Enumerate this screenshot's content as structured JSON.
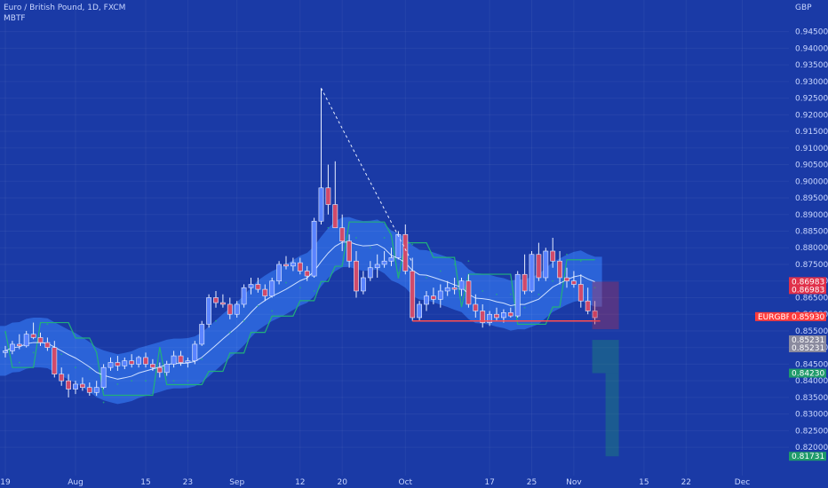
{
  "header": {
    "symbol_line": "Euro / British Pound, 1D, FXCM",
    "indicator": "MBTF"
  },
  "colors": {
    "background": "#1a3aa6",
    "band": "#2f6be0",
    "up": "#5b84ff",
    "down": "#d04a6a",
    "sma": "#cfe0ff",
    "trail": "#22b07a",
    "price_line": "#ff4d4d"
  },
  "chart_data": {
    "type": "candlestick",
    "currency": "GBP",
    "symbol_tag": "EURGBP",
    "ylim": [
      0.8115,
      0.9545
    ],
    "y_ticks": [
      "0.94500",
      "0.94000",
      "0.93500",
      "0.93000",
      "0.92500",
      "0.92000",
      "0.91500",
      "0.91000",
      "0.90500",
      "0.90000",
      "0.89500",
      "0.89000",
      "0.88500",
      "0.88000",
      "0.87500",
      "0.87000",
      "0.86500",
      "0.86000",
      "0.85500",
      "0.85000",
      "0.84500",
      "0.84000",
      "0.83500",
      "0.83000",
      "0.82500",
      "0.82000"
    ],
    "x_ticks": [
      {
        "label": "19",
        "index": 0
      },
      {
        "label": "Aug",
        "index": 10
      },
      {
        "label": "15",
        "index": 20
      },
      {
        "label": "23",
        "index": 26
      },
      {
        "label": "Sep",
        "index": 33
      },
      {
        "label": "12",
        "index": 42
      },
      {
        "label": "20",
        "index": 48
      },
      {
        "label": "Oct",
        "index": 57
      },
      {
        "label": "17",
        "index": 69
      },
      {
        "label": "25",
        "index": 75
      },
      {
        "label": "Nov",
        "index": 81
      },
      {
        "label": "15",
        "index": 91
      },
      {
        "label": "22",
        "index": 97
      },
      {
        "label": "Dec",
        "index": 105
      }
    ],
    "candles": [
      [
        0.8485,
        0.8505,
        0.847,
        0.849
      ],
      [
        0.849,
        0.852,
        0.848,
        0.851
      ],
      [
        0.851,
        0.854,
        0.8495,
        0.8505
      ],
      [
        0.8505,
        0.855,
        0.85,
        0.854
      ],
      [
        0.854,
        0.8575,
        0.8525,
        0.853
      ],
      [
        0.853,
        0.8545,
        0.8505,
        0.8515
      ],
      [
        0.8515,
        0.853,
        0.849,
        0.85
      ],
      [
        0.85,
        0.852,
        0.841,
        0.842
      ],
      [
        0.842,
        0.844,
        0.8385,
        0.84
      ],
      [
        0.84,
        0.842,
        0.835,
        0.8375
      ],
      [
        0.8375,
        0.84,
        0.836,
        0.839
      ],
      [
        0.839,
        0.841,
        0.837,
        0.838
      ],
      [
        0.838,
        0.8395,
        0.8355,
        0.8365
      ],
      [
        0.8365,
        0.84,
        0.8355,
        0.838
      ],
      [
        0.838,
        0.845,
        0.8375,
        0.844
      ],
      [
        0.844,
        0.847,
        0.843,
        0.8455
      ],
      [
        0.8455,
        0.8475,
        0.843,
        0.8445
      ],
      [
        0.8445,
        0.847,
        0.8435,
        0.846
      ],
      [
        0.846,
        0.848,
        0.844,
        0.845
      ],
      [
        0.845,
        0.8475,
        0.844,
        0.847
      ],
      [
        0.847,
        0.8485,
        0.844,
        0.845
      ],
      [
        0.845,
        0.8465,
        0.843,
        0.844
      ],
      [
        0.844,
        0.8455,
        0.841,
        0.8425
      ],
      [
        0.8425,
        0.846,
        0.8415,
        0.845
      ],
      [
        0.845,
        0.849,
        0.844,
        0.8475
      ],
      [
        0.8475,
        0.849,
        0.8445,
        0.8455
      ],
      [
        0.8455,
        0.847,
        0.844,
        0.846
      ],
      [
        0.846,
        0.852,
        0.845,
        0.851
      ],
      [
        0.851,
        0.858,
        0.8505,
        0.857
      ],
      [
        0.857,
        0.866,
        0.856,
        0.865
      ],
      [
        0.865,
        0.867,
        0.862,
        0.8635
      ],
      [
        0.8635,
        0.866,
        0.862,
        0.863
      ],
      [
        0.863,
        0.865,
        0.8585,
        0.86
      ],
      [
        0.86,
        0.864,
        0.859,
        0.863
      ],
      [
        0.863,
        0.869,
        0.862,
        0.868
      ],
      [
        0.868,
        0.871,
        0.866,
        0.869
      ],
      [
        0.869,
        0.871,
        0.8665,
        0.8675
      ],
      [
        0.8675,
        0.869,
        0.864,
        0.8655
      ],
      [
        0.8655,
        0.871,
        0.865,
        0.87
      ],
      [
        0.87,
        0.876,
        0.869,
        0.875
      ],
      [
        0.875,
        0.8775,
        0.8735,
        0.8745
      ],
      [
        0.8745,
        0.877,
        0.873,
        0.8755
      ],
      [
        0.8755,
        0.877,
        0.872,
        0.873
      ],
      [
        0.873,
        0.8745,
        0.87,
        0.8715
      ],
      [
        0.8715,
        0.889,
        0.871,
        0.888
      ],
      [
        0.888,
        0.928,
        0.887,
        0.898
      ],
      [
        0.898,
        0.905,
        0.89,
        0.893
      ],
      [
        0.893,
        0.906,
        0.886,
        0.886
      ],
      [
        0.886,
        0.89,
        0.879,
        0.882
      ],
      [
        0.882,
        0.884,
        0.874,
        0.876
      ],
      [
        0.876,
        0.879,
        0.865,
        0.867
      ],
      [
        0.867,
        0.873,
        0.866,
        0.871
      ],
      [
        0.871,
        0.876,
        0.87,
        0.874
      ],
      [
        0.874,
        0.878,
        0.871,
        0.875
      ],
      [
        0.875,
        0.879,
        0.874,
        0.876
      ],
      [
        0.876,
        0.88,
        0.8745,
        0.877
      ],
      [
        0.877,
        0.885,
        0.8765,
        0.884
      ],
      [
        0.884,
        0.887,
        0.872,
        0.873
      ],
      [
        0.873,
        0.877,
        0.858,
        0.859
      ],
      [
        0.859,
        0.864,
        0.858,
        0.863
      ],
      [
        0.863,
        0.867,
        0.861,
        0.8655
      ],
      [
        0.8655,
        0.868,
        0.863,
        0.8645
      ],
      [
        0.8645,
        0.869,
        0.862,
        0.867
      ],
      [
        0.867,
        0.87,
        0.8655,
        0.868
      ],
      [
        0.868,
        0.871,
        0.866,
        0.8675
      ],
      [
        0.8675,
        0.871,
        0.8655,
        0.87
      ],
      [
        0.87,
        0.872,
        0.862,
        0.863
      ],
      [
        0.863,
        0.866,
        0.859,
        0.861
      ],
      [
        0.861,
        0.863,
        0.856,
        0.8575
      ],
      [
        0.8575,
        0.861,
        0.8565,
        0.86
      ],
      [
        0.86,
        0.862,
        0.858,
        0.859
      ],
      [
        0.859,
        0.8615,
        0.8575,
        0.8605
      ],
      [
        0.8605,
        0.862,
        0.859,
        0.8595
      ],
      [
        0.8595,
        0.873,
        0.859,
        0.872
      ],
      [
        0.872,
        0.878,
        0.866,
        0.867
      ],
      [
        0.867,
        0.879,
        0.8665,
        0.878
      ],
      [
        0.878,
        0.8815,
        0.87,
        0.871
      ],
      [
        0.871,
        0.88,
        0.87,
        0.879
      ],
      [
        0.879,
        0.883,
        0.874,
        0.876
      ],
      [
        0.876,
        0.879,
        0.869,
        0.871
      ],
      [
        0.871,
        0.874,
        0.868,
        0.87
      ],
      [
        0.87,
        0.873,
        0.868,
        0.869
      ],
      [
        0.869,
        0.872,
        0.862,
        0.864
      ],
      [
        0.864,
        0.868,
        0.86,
        0.861
      ],
      [
        0.861,
        0.864,
        0.857,
        0.859
      ]
    ],
    "overlays": {
      "sma_name": "",
      "band_name": "",
      "trail_name": ""
    },
    "price_tags": [
      {
        "label": "0.86983",
        "value": 0.86983,
        "color": "#e0304a"
      },
      {
        "label": "0.86983",
        "value": 0.86983,
        "color": "#e0304a",
        "offset": 1
      },
      {
        "label": "0.85930",
        "value": 0.8593,
        "color": "#ff3b3b",
        "symbol": "EURGBP"
      },
      {
        "label": "0.85231",
        "value": 0.85231,
        "color": "#8a8a9e"
      },
      {
        "label": "0.85231",
        "value": 0.85231,
        "color": "#8a8a9e",
        "offset": 1
      },
      {
        "label": "0.84230",
        "value": 0.8423,
        "color": "#1f9a6a"
      },
      {
        "label": "0.81731",
        "value": 0.81731,
        "color": "#1f9a6a"
      }
    ]
  }
}
